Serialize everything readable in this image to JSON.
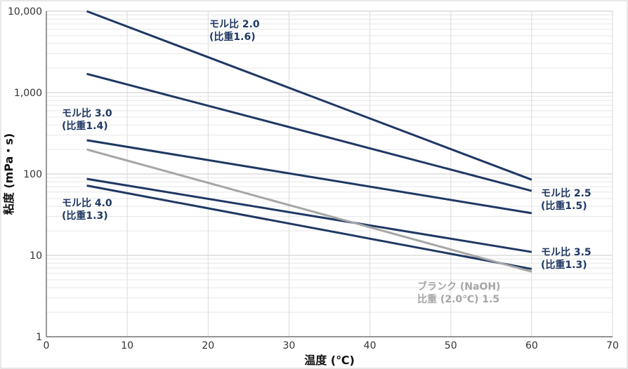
{
  "chart_data": {
    "type": "line",
    "x_scale": "linear",
    "y_scale": "log",
    "xlabel": "温度 (℃)",
    "ylabel": "粘度 (mPa・s)",
    "xlim": [
      0,
      70
    ],
    "ylim": [
      1,
      10000
    ],
    "x_ticks": [
      "0",
      "10",
      "20",
      "30",
      "40",
      "50",
      "60",
      "70"
    ],
    "y_ticks": [
      "1",
      "10",
      "100",
      "1,000",
      "10,000"
    ],
    "grid": true,
    "series": [
      {
        "values": [
          [
            5,
            10000
          ],
          [
            60,
            85
          ]
        ],
        "color": "#1f3864"
      },
      {
        "values": [
          [
            5,
            1700
          ],
          [
            60,
            62
          ]
        ],
        "color": "#1f3864"
      },
      {
        "values": [
          [
            5,
            260
          ],
          [
            60,
            33
          ]
        ],
        "color": "#1f3864"
      },
      {
        "values": [
          [
            5,
            87
          ],
          [
            60,
            11
          ]
        ],
        "color": "#1f3864"
      },
      {
        "values": [
          [
            5,
            72
          ],
          [
            60,
            6.8
          ]
        ],
        "color": "#1f3864"
      },
      {
        "values": [
          [
            5,
            200
          ],
          [
            60,
            6.3
          ]
        ],
        "color": "#a6a6a6"
      }
    ],
    "annotations": [
      {
        "lines": [
          "モル比 2.0",
          "(比重1.6)"
        ],
        "color": "#1f3864"
      },
      {
        "lines": [
          "モル比 3.0",
          "(比重1.4)"
        ],
        "color": "#1f3864"
      },
      {
        "lines": [
          "モル比 4.0",
          "(比重1.3)"
        ],
        "color": "#1f3864"
      },
      {
        "lines": [
          "モル比 2.5",
          "(比重1.5)"
        ],
        "color": "#1f3864"
      },
      {
        "lines": [
          "モル比 3.5",
          "(比重1.3)"
        ],
        "color": "#1f3864"
      },
      {
        "lines": [
          "ブランク (NaOH)",
          "比重 (2.0℃) 1.5"
        ],
        "color": "#a6a6a6"
      }
    ]
  }
}
